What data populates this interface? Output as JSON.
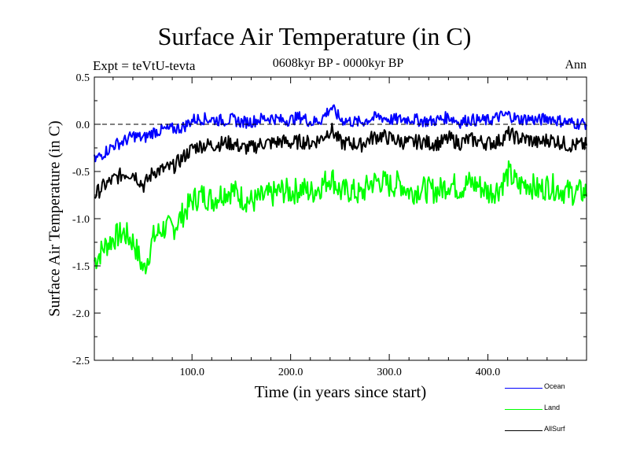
{
  "chart_data": {
    "type": "line",
    "title": "Surface Air Temperature (in C)",
    "subtitle": "0608kyr BP - 0000kyr BP",
    "top_left_label": "Expt = teVtU-tevta",
    "top_right_label": "Ann",
    "xlabel": "Time (in years since start)",
    "ylabel": "Surface Air Temperature (in C)",
    "xlim": [
      1,
      500
    ],
    "ylim": [
      -2.5,
      0.5
    ],
    "x_ticks": [
      100,
      200,
      300,
      400
    ],
    "x_tick_labels": [
      "100.0",
      "200.0",
      "300.0",
      "400.0"
    ],
    "y_ticks": [
      -2.5,
      -2.0,
      -1.5,
      -1.0,
      -0.5,
      0.0,
      0.5
    ],
    "y_tick_labels": [
      "-2.5",
      "-2.0",
      "-1.5",
      "-1.0",
      "-0.5",
      "0.0",
      "0.5"
    ],
    "reference_line": 0.0,
    "legend_position": "bottom-right, outside plot",
    "series": [
      {
        "name": "Ocean",
        "color": "#0000ff",
        "x_start": 1,
        "x_step": 10,
        "values": [
          -0.38,
          -0.3,
          -0.22,
          -0.18,
          -0.12,
          -0.15,
          -0.08,
          -0.06,
          -0.05,
          -0.03,
          0.05,
          0.06,
          0.05,
          0.04,
          0.05,
          0.02,
          0.03,
          0.06,
          0.07,
          0.04,
          0.05,
          0.08,
          0.02,
          0.05,
          0.18,
          0.05,
          0.03,
          0.02,
          0.06,
          0.08,
          0.05,
          0.05,
          0.06,
          0.04,
          0.03,
          0.05,
          0.08,
          0.02,
          0.05,
          0.04,
          0.04,
          0.08,
          0.1,
          0.05,
          0.06,
          0.04,
          0.07,
          0.04,
          0.02,
          0.01
        ]
      },
      {
        "name": "Land",
        "color": "#00ff00",
        "x_start": 1,
        "x_step": 10,
        "values": [
          -1.45,
          -1.3,
          -1.2,
          -1.15,
          -1.25,
          -1.55,
          -1.2,
          -1.1,
          -1.1,
          -0.95,
          -0.8,
          -0.75,
          -0.8,
          -0.72,
          -0.7,
          -0.78,
          -0.82,
          -0.78,
          -0.75,
          -0.7,
          -0.72,
          -0.68,
          -0.72,
          -0.65,
          -0.55,
          -0.72,
          -0.7,
          -0.75,
          -0.62,
          -0.6,
          -0.65,
          -0.62,
          -0.72,
          -0.68,
          -0.7,
          -0.7,
          -0.62,
          -0.68,
          -0.62,
          -0.65,
          -0.72,
          -0.68,
          -0.52,
          -0.65,
          -0.62,
          -0.7,
          -0.65,
          -0.68,
          -0.72,
          -0.72
        ]
      },
      {
        "name": "AllSurf",
        "color": "#000000",
        "x_start": 1,
        "x_step": 10,
        "values": [
          -0.75,
          -0.65,
          -0.58,
          -0.52,
          -0.52,
          -0.65,
          -0.5,
          -0.48,
          -0.45,
          -0.35,
          -0.25,
          -0.22,
          -0.22,
          -0.2,
          -0.2,
          -0.25,
          -0.25,
          -0.2,
          -0.2,
          -0.18,
          -0.2,
          -0.18,
          -0.2,
          -0.15,
          -0.05,
          -0.2,
          -0.2,
          -0.22,
          -0.15,
          -0.12,
          -0.15,
          -0.18,
          -0.2,
          -0.18,
          -0.2,
          -0.2,
          -0.15,
          -0.2,
          -0.16,
          -0.18,
          -0.2,
          -0.18,
          -0.1,
          -0.15,
          -0.16,
          -0.2,
          -0.16,
          -0.18,
          -0.22,
          -0.22
        ]
      }
    ]
  }
}
